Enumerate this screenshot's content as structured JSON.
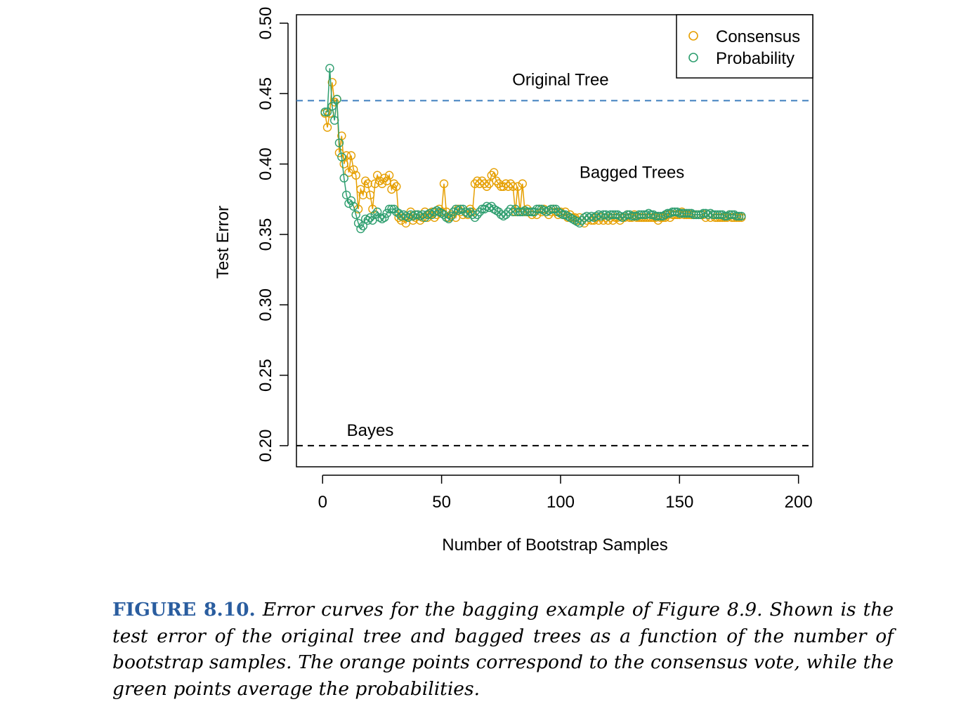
{
  "chart_data": {
    "type": "line",
    "xlabel": "Number of Bootstrap Samples",
    "ylabel": "Test Error",
    "xlim": [
      -11,
      206
    ],
    "ylim": [
      0.185,
      0.506
    ],
    "x_ticks": [
      0,
      50,
      100,
      150,
      200
    ],
    "x_tick_labels": [
      "0",
      "50",
      "100",
      "150",
      "200"
    ],
    "y_ticks": [
      0.2,
      0.25,
      0.3,
      0.35,
      0.4,
      0.45,
      0.5
    ],
    "y_tick_labels": [
      "0.20",
      "0.25",
      "0.30",
      "0.35",
      "0.40",
      "0.45",
      "0.50"
    ],
    "grid": false,
    "legend_position": "top-right",
    "reference_lines": [
      {
        "label": "Original Tree",
        "y": 0.445,
        "color": "#3f7fbf",
        "style": "dashed"
      },
      {
        "label": "Bayes",
        "y": 0.2,
        "color": "#000000",
        "style": "dashed"
      }
    ],
    "annotations": [
      {
        "text": "Bagged Trees",
        "x": 130,
        "y": 0.39
      }
    ],
    "series": [
      {
        "name": "Consensus",
        "color": "#e69f00",
        "marker": "open-circle",
        "x_start": 1,
        "values": [
          0.436,
          0.426,
          0.436,
          0.458,
          0.444,
          0.446,
          0.408,
          0.42,
          0.4,
          0.406,
          0.394,
          0.406,
          0.396,
          0.392,
          0.368,
          0.382,
          0.378,
          0.388,
          0.386,
          0.378,
          0.368,
          0.386,
          0.392,
          0.388,
          0.386,
          0.39,
          0.388,
          0.392,
          0.382,
          0.386,
          0.384,
          0.362,
          0.36,
          0.362,
          0.358,
          0.362,
          0.366,
          0.36,
          0.362,
          0.364,
          0.36,
          0.362,
          0.366,
          0.362,
          0.364,
          0.366,
          0.362,
          0.364,
          0.368,
          0.366,
          0.386,
          0.366,
          0.362,
          0.364,
          0.366,
          0.362,
          0.368,
          0.366,
          0.364,
          0.366,
          0.364,
          0.368,
          0.366,
          0.386,
          0.388,
          0.386,
          0.388,
          0.386,
          0.384,
          0.386,
          0.392,
          0.394,
          0.388,
          0.386,
          0.384,
          0.384,
          0.386,
          0.384,
          0.386,
          0.384,
          0.366,
          0.384,
          0.366,
          0.386,
          0.366,
          0.368,
          0.366,
          0.364,
          0.366,
          0.364,
          0.368,
          0.366,
          0.368,
          0.366,
          0.364,
          0.366,
          0.368,
          0.366,
          0.364,
          0.366,
          0.364,
          0.366,
          0.362,
          0.364,
          0.362,
          0.362,
          0.36,
          0.362,
          0.36,
          0.358,
          0.36,
          0.362,
          0.36,
          0.36,
          0.362,
          0.36,
          0.362,
          0.36,
          0.362,
          0.36,
          0.362,
          0.36,
          0.362,
          0.362,
          0.36,
          0.362,
          0.362,
          0.364,
          0.362,
          0.362,
          0.364,
          0.362,
          0.362,
          0.362,
          0.362,
          0.362,
          0.362,
          0.362,
          0.362,
          0.362,
          0.36,
          0.362,
          0.362,
          0.362,
          0.364,
          0.362,
          0.364,
          0.364,
          0.364,
          0.364,
          0.366,
          0.364,
          0.364,
          0.364,
          0.364,
          0.364,
          0.364,
          0.364,
          0.364,
          0.364,
          0.362,
          0.364,
          0.362,
          0.364,
          0.362,
          0.362,
          0.362,
          0.362,
          0.362,
          0.362,
          0.364,
          0.362,
          0.362,
          0.362,
          0.362,
          0.362
        ]
      },
      {
        "name": "Probability",
        "color": "#2e9e6f",
        "marker": "open-circle",
        "x_start": 1,
        "values": [
          0.437,
          0.437,
          0.468,
          0.441,
          0.431,
          0.446,
          0.415,
          0.405,
          0.39,
          0.378,
          0.372,
          0.374,
          0.37,
          0.364,
          0.358,
          0.354,
          0.356,
          0.361,
          0.36,
          0.362,
          0.36,
          0.364,
          0.366,
          0.362,
          0.361,
          0.362,
          0.365,
          0.368,
          0.368,
          0.368,
          0.366,
          0.365,
          0.363,
          0.364,
          0.363,
          0.362,
          0.364,
          0.363,
          0.364,
          0.364,
          0.363,
          0.364,
          0.362,
          0.364,
          0.365,
          0.364,
          0.366,
          0.367,
          0.366,
          0.365,
          0.364,
          0.362,
          0.361,
          0.363,
          0.366,
          0.368,
          0.367,
          0.368,
          0.368,
          0.366,
          0.365,
          0.366,
          0.364,
          0.362,
          0.364,
          0.366,
          0.368,
          0.368,
          0.37,
          0.369,
          0.37,
          0.368,
          0.367,
          0.366,
          0.364,
          0.363,
          0.364,
          0.366,
          0.368,
          0.366,
          0.368,
          0.366,
          0.366,
          0.366,
          0.367,
          0.366,
          0.366,
          0.366,
          0.366,
          0.368,
          0.368,
          0.368,
          0.367,
          0.366,
          0.367,
          0.368,
          0.368,
          0.368,
          0.366,
          0.365,
          0.364,
          0.364,
          0.363,
          0.362,
          0.361,
          0.36,
          0.359,
          0.358,
          0.36,
          0.362,
          0.363,
          0.362,
          0.363,
          0.362,
          0.363,
          0.364,
          0.363,
          0.364,
          0.364,
          0.363,
          0.364,
          0.364,
          0.364,
          0.364,
          0.363,
          0.362,
          0.363,
          0.364,
          0.364,
          0.363,
          0.363,
          0.363,
          0.364,
          0.364,
          0.364,
          0.364,
          0.365,
          0.364,
          0.364,
          0.363,
          0.363,
          0.363,
          0.363,
          0.364,
          0.365,
          0.365,
          0.366,
          0.366,
          0.366,
          0.365,
          0.365,
          0.365,
          0.365,
          0.365,
          0.365,
          0.364,
          0.364,
          0.364,
          0.364,
          0.365,
          0.365,
          0.364,
          0.365,
          0.364,
          0.364,
          0.364,
          0.364,
          0.364,
          0.363,
          0.363,
          0.364,
          0.364,
          0.364,
          0.363,
          0.363,
          0.363
        ]
      }
    ]
  },
  "caption": {
    "label": "FIGURE 8.10.",
    "text": "Error curves for the bagging example of Figure 8.9. Shown is the test error of the original tree and bagged trees as a function of the number of bootstrap samples. The orange points correspond to the consensus vote, while the green points average the probabilities."
  },
  "colors": {
    "caption_label": "#2a5d9f"
  }
}
